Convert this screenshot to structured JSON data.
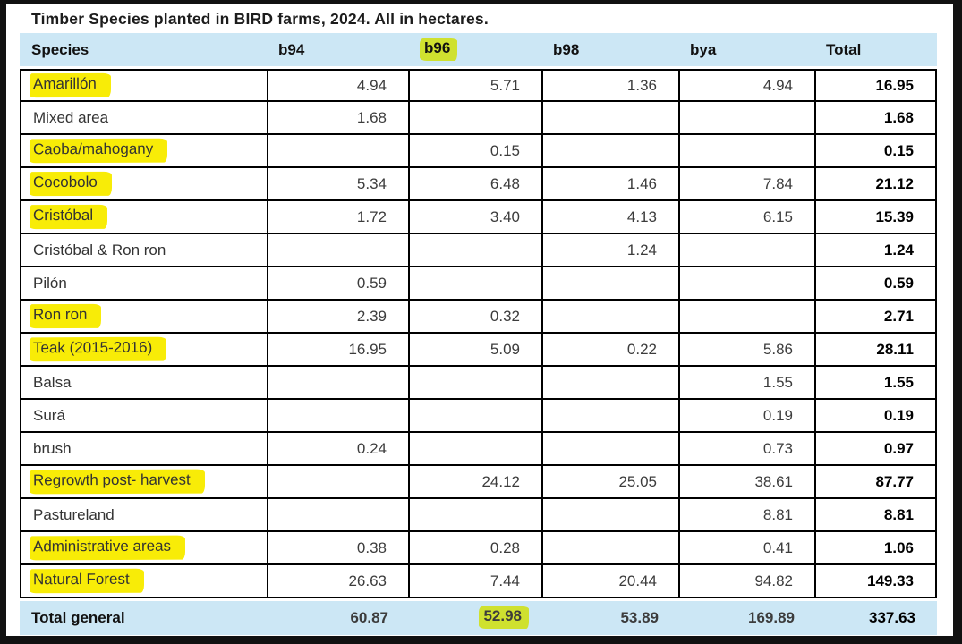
{
  "title": "Timber Species planted in BIRD farms, 2024. All in hectares.",
  "table": {
    "columns": [
      {
        "label": "Species",
        "highlight": false
      },
      {
        "label": "b94",
        "highlight": false
      },
      {
        "label": "b96",
        "highlight": true
      },
      {
        "label": "b98",
        "highlight": false
      },
      {
        "label": "bya",
        "highlight": false
      },
      {
        "label": "Total",
        "highlight": false
      }
    ],
    "rows": [
      {
        "species": "Amarillón",
        "highlight": true,
        "values": [
          "4.94",
          "5.71",
          "1.36",
          "4.94"
        ],
        "total": "16.95"
      },
      {
        "species": "Mixed area",
        "highlight": false,
        "values": [
          "1.68",
          "",
          "",
          ""
        ],
        "total": "1.68"
      },
      {
        "species": "Caoba/mahogany",
        "highlight": true,
        "values": [
          "",
          "0.15",
          "",
          ""
        ],
        "total": "0.15"
      },
      {
        "species": "Cocobolo",
        "highlight": true,
        "values": [
          "5.34",
          "6.48",
          "1.46",
          "7.84"
        ],
        "total": "21.12"
      },
      {
        "species": "Cristóbal",
        "highlight": true,
        "values": [
          "1.72",
          "3.40",
          "4.13",
          "6.15"
        ],
        "total": "15.39"
      },
      {
        "species": "Cristóbal & Ron ron",
        "highlight": false,
        "values": [
          "",
          "",
          "1.24",
          ""
        ],
        "total": "1.24"
      },
      {
        "species": "Pilón",
        "highlight": false,
        "values": [
          "0.59",
          "",
          "",
          ""
        ],
        "total": "0.59"
      },
      {
        "species": "Ron ron",
        "highlight": true,
        "values": [
          "2.39",
          "0.32",
          "",
          ""
        ],
        "total": "2.71"
      },
      {
        "species": "Teak (2015-2016)",
        "highlight": true,
        "values": [
          "16.95",
          "5.09",
          "0.22",
          "5.86"
        ],
        "total": "28.11"
      },
      {
        "species": "Balsa",
        "highlight": false,
        "values": [
          "",
          "",
          "",
          "1.55"
        ],
        "total": "1.55"
      },
      {
        "species": "Surá",
        "highlight": false,
        "values": [
          "",
          "",
          "",
          "0.19"
        ],
        "total": "0.19"
      },
      {
        "species": "brush",
        "highlight": false,
        "values": [
          "0.24",
          "",
          "",
          "0.73"
        ],
        "total": "0.97"
      },
      {
        "species": "Regrowth post- harvest",
        "highlight": true,
        "values": [
          "",
          "24.12",
          "25.05",
          "38.61"
        ],
        "total": "87.77"
      },
      {
        "species": "Pastureland",
        "highlight": false,
        "values": [
          "",
          "",
          "",
          "8.81"
        ],
        "total": "8.81"
      },
      {
        "species": "Administrative areas",
        "highlight": true,
        "values": [
          "0.38",
          "0.28",
          "",
          "0.41"
        ],
        "total": "1.06"
      },
      {
        "species": "Natural Forest",
        "highlight": true,
        "values": [
          "26.63",
          "7.44",
          "20.44",
          "94.82"
        ],
        "total": "149.33"
      }
    ],
    "total_row": {
      "label": "Total general",
      "values": [
        "60.87",
        "52.98",
        "53.89",
        "169.89"
      ],
      "total": "337.63",
      "highlighted_value_index": 1
    }
  },
  "colors": {
    "band_blue": "#cce7f5",
    "highlight_yellow": "#f8ec07",
    "highlight_green_on_blue": "#cfe12f",
    "grid_border": "#000000",
    "frame": "#111111"
  }
}
